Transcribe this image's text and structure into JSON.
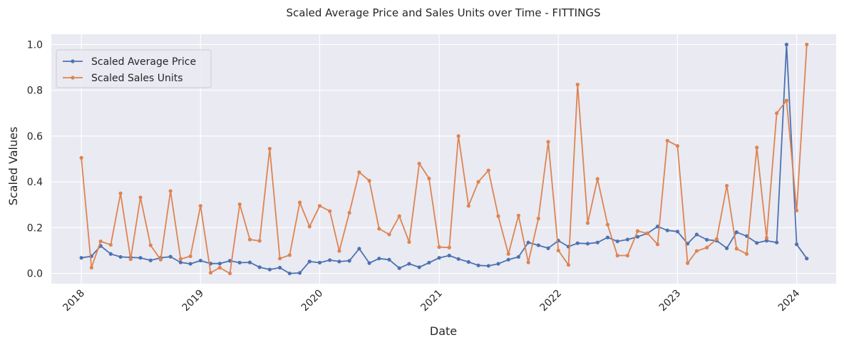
{
  "chart_data": {
    "type": "line",
    "title": "Scaled Average Price and Sales Units over Time - FITTINGS",
    "xlabel": "Date",
    "ylabel": "Scaled Values",
    "xlim": [
      "2017-10-01",
      "2024-05-01"
    ],
    "ylim": [
      -0.045,
      1.045
    ],
    "yticks": [
      "0.0",
      "0.2",
      "0.4",
      "0.6",
      "0.8",
      "1.0"
    ],
    "xticks": [
      {
        "label": "2018",
        "date": "2018-01-01"
      },
      {
        "label": "2019",
        "date": "2019-01-01"
      },
      {
        "label": "2020",
        "date": "2020-01-01"
      },
      {
        "label": "2021",
        "date": "2021-01-01"
      },
      {
        "label": "2022",
        "date": "2022-01-01"
      },
      {
        "label": "2023",
        "date": "2023-01-01"
      },
      {
        "label": "2024",
        "date": "2024-01-01"
      }
    ],
    "grid": true,
    "legend_position": "top-left",
    "x_start": "2018-01",
    "x_end": "2024-02",
    "series": [
      {
        "name": "Scaled Average Price",
        "color": "#4c72b0",
        "values": [
          0.068,
          0.075,
          0.12,
          0.085,
          0.072,
          0.07,
          0.068,
          0.057,
          0.068,
          0.073,
          0.048,
          0.042,
          0.056,
          0.043,
          0.043,
          0.055,
          0.047,
          0.048,
          0.027,
          0.017,
          0.025,
          0.0,
          0.002,
          0.052,
          0.047,
          0.058,
          0.052,
          0.055,
          0.108,
          0.045,
          0.065,
          0.06,
          0.023,
          0.042,
          0.027,
          0.047,
          0.068,
          0.078,
          0.063,
          0.05,
          0.035,
          0.033,
          0.042,
          0.06,
          0.072,
          0.135,
          0.123,
          0.11,
          0.143,
          0.117,
          0.132,
          0.13,
          0.135,
          0.157,
          0.14,
          0.148,
          0.16,
          0.175,
          0.205,
          0.188,
          0.183,
          0.13,
          0.17,
          0.147,
          0.143,
          0.11,
          0.18,
          0.163,
          0.133,
          0.143,
          0.135,
          1.0,
          0.127,
          0.065
        ]
      },
      {
        "name": "Scaled Sales Units",
        "color": "#dd8452",
        "values": [
          0.505,
          0.025,
          0.14,
          0.125,
          0.35,
          0.062,
          0.332,
          0.123,
          0.06,
          0.36,
          0.063,
          0.075,
          0.295,
          0.003,
          0.025,
          0.0,
          0.302,
          0.148,
          0.142,
          0.545,
          0.065,
          0.08,
          0.31,
          0.205,
          0.295,
          0.272,
          0.098,
          0.265,
          0.442,
          0.405,
          0.195,
          0.17,
          0.25,
          0.137,
          0.48,
          0.415,
          0.115,
          0.113,
          0.6,
          0.295,
          0.4,
          0.45,
          0.25,
          0.085,
          0.253,
          0.048,
          0.24,
          0.575,
          0.1,
          0.037,
          0.825,
          0.22,
          0.413,
          0.213,
          0.078,
          0.078,
          0.185,
          0.175,
          0.127,
          0.58,
          0.557,
          0.045,
          0.098,
          0.113,
          0.15,
          0.383,
          0.108,
          0.085,
          0.55,
          0.155,
          0.7,
          0.755,
          0.275,
          1.0
        ]
      }
    ]
  }
}
